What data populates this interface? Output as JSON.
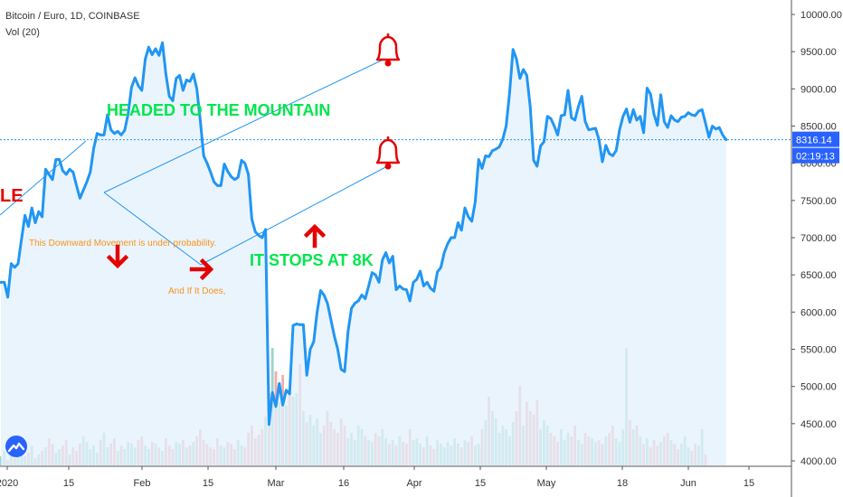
{
  "header": {
    "symbol": "Bitcoin / Euro, 1D, COINBASE",
    "volume_label": "Vol (20)"
  },
  "colors": {
    "price_line": "#2196f3",
    "price_fill": "#e3f0fc",
    "volume_up": "#8fd1c6",
    "volume_down": "#f0a3a6",
    "annotation_green": "#00e64d",
    "annotation_orange": "#f7931a",
    "annotation_red": "#e50000",
    "trendline": "#2196f3",
    "price_tag_bg": "#2962ff",
    "axis_text": "#333333"
  },
  "price_tag": {
    "price": "8316.14",
    "countdown": "02:19:13"
  },
  "annotations": {
    "headline": "HEADED TO THE MOUNTAIN",
    "stops": "IT STOPS AT 8K",
    "downward": "This Downward Movement is under probability.",
    "if_does": "And If It Does,",
    "cut_text": "LE"
  },
  "icons": [
    "bell-icon",
    "bell-icon",
    "arrow-down-icon",
    "arrow-right-icon",
    "arrow-up-icon",
    "tradingview-logo-icon"
  ],
  "chart_data": {
    "type": "line",
    "title": "Bitcoin / Euro, 1D, COINBASE",
    "xlabel": "",
    "ylabel": "",
    "ylim": [
      3950,
      10200
    ],
    "grid": false,
    "y_ticks": [
      "10000.00",
      "9500.00",
      "9000.00",
      "8500.00",
      "8000.00",
      "7500.00",
      "7000.00",
      "6500.00",
      "6000.00",
      "5500.00",
      "5000.00",
      "4500.00",
      "4000.00"
    ],
    "x_ticks": [
      "2020",
      "15",
      "Feb",
      "15",
      "Mar",
      "16",
      "Apr",
      "15",
      "May",
      "18",
      "Jun",
      "15"
    ],
    "series": [
      {
        "name": "Price",
        "values": [
          6400,
          6400,
          6200,
          6650,
          6600,
          6650,
          6980,
          7300,
          7150,
          7400,
          7200,
          7350,
          7280,
          7920,
          7850,
          7780,
          8050,
          8050,
          7900,
          7850,
          7920,
          7880,
          7700,
          7530,
          7640,
          7750,
          7880,
          8200,
          8400,
          8380,
          8380,
          8650,
          8450,
          8400,
          8430,
          8380,
          8440,
          8660,
          9020,
          9150,
          9040,
          8980,
          9400,
          9560,
          9460,
          9540,
          9450,
          9620,
          9200,
          8900,
          8840,
          9140,
          9180,
          8980,
          9120,
          9100,
          9200,
          9000,
          8580,
          8100,
          8000,
          7880,
          7750,
          7700,
          7700,
          7990,
          7890,
          7820,
          7780,
          7810,
          8040,
          8000,
          7850,
          7250,
          7080,
          7030,
          7000,
          7110,
          4490,
          4920,
          4730,
          5040,
          4750,
          4950,
          4900,
          5820,
          5840,
          5830,
          5830,
          5150,
          5500,
          5600,
          6000,
          6290,
          6230,
          6120,
          5900,
          5680,
          5500,
          5230,
          5200,
          5740,
          6050,
          6120,
          6150,
          6230,
          6180,
          6350,
          6530,
          6500,
          6400,
          6700,
          6800,
          6660,
          6750,
          6300,
          6350,
          6310,
          6300,
          6150,
          6400,
          6440,
          6550,
          6350,
          6400,
          6320,
          6280,
          6540,
          6600,
          6800,
          6920,
          7000,
          7000,
          7200,
          7100,
          7400,
          7280,
          7220,
          7480,
          8050,
          7930,
          8100,
          8090,
          8170,
          8190,
          8220,
          8320,
          8500,
          8950,
          9530,
          9400,
          9140,
          9260,
          9180,
          8760,
          8040,
          7960,
          8230,
          8290,
          8630,
          8600,
          8500,
          8380,
          8640,
          8650,
          8980,
          8610,
          8580,
          8760,
          8900,
          8560,
          8450,
          8460,
          8470,
          8320,
          8020,
          8240,
          8130,
          8100,
          8170,
          8450,
          8630,
          8730,
          8550,
          8720,
          8580,
          8630,
          8410,
          9010,
          8930,
          8660,
          8510,
          8920,
          8560,
          8480,
          8640,
          8580,
          8560,
          8620,
          8630,
          8680,
          8650,
          8640,
          8700,
          8720,
          8540,
          8350,
          8500,
          8460,
          8480,
          8380,
          8316
        ]
      },
      {
        "name": "Vol (20)",
        "values": [
          5,
          8,
          3,
          6,
          4,
          9,
          13,
          5,
          7,
          11,
          4,
          6,
          8,
          10,
          15,
          12,
          7,
          9,
          11,
          14,
          6,
          10,
          8,
          12,
          16,
          13,
          9,
          11,
          7,
          14,
          18,
          10,
          12,
          15,
          8,
          11,
          9,
          13,
          12,
          10,
          14,
          16,
          11,
          9,
          13,
          12,
          10,
          8,
          15,
          11,
          9,
          13,
          12,
          14,
          10,
          11,
          13,
          16,
          20,
          14,
          12,
          10,
          9,
          15,
          11,
          10,
          13,
          12,
          9,
          14,
          11,
          10,
          18,
          22,
          15,
          17,
          20,
          27,
          40,
          65,
          52,
          35,
          50,
          33,
          42,
          38,
          40,
          56,
          30,
          24,
          28,
          22,
          26,
          18,
          22,
          30,
          24,
          20,
          18,
          26,
          22,
          15,
          18,
          14,
          22,
          20,
          16,
          14,
          13,
          18,
          16,
          20,
          15,
          12,
          14,
          11,
          16,
          13,
          12,
          20,
          14,
          15,
          12,
          10,
          16,
          11,
          9,
          14,
          12,
          10,
          13,
          11,
          15,
          12,
          10,
          14,
          13,
          16,
          11,
          12,
          20,
          25,
          38,
          30,
          26,
          18,
          22,
          20,
          16,
          24,
          30,
          44,
          22,
          35,
          30,
          28,
          36,
          20,
          25,
          22,
          18,
          16,
          13,
          20,
          14,
          18,
          16,
          22,
          14,
          12,
          18,
          16,
          15,
          13,
          14,
          12,
          16,
          18,
          22,
          15,
          13,
          20,
          65,
          25,
          20,
          22,
          16,
          12,
          15,
          10,
          14,
          11,
          13,
          16,
          18,
          14,
          12,
          9,
          12,
          16,
          10,
          8,
          12,
          11,
          20,
          6
        ]
      }
    ]
  }
}
